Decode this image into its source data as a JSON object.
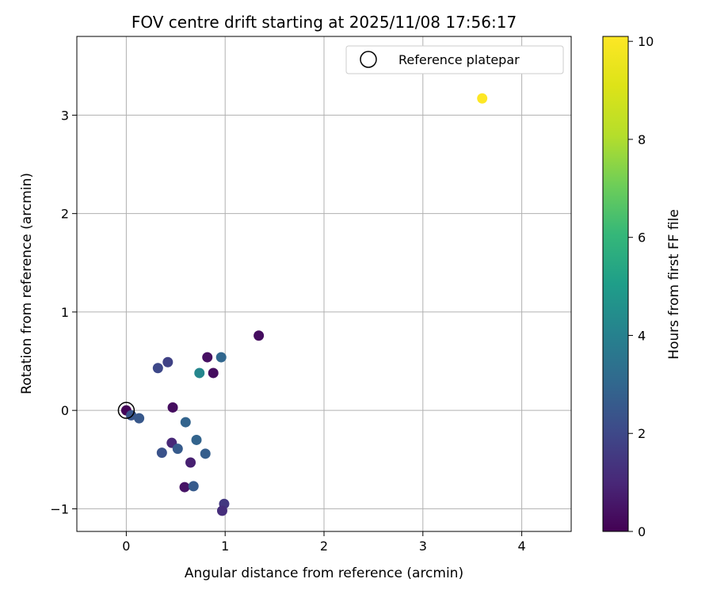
{
  "chart_data": {
    "type": "scatter",
    "title": "FOV centre drift starting at 2025/11/08 17:56:17",
    "xlabel": "Angular distance from reference (arcmin)",
    "ylabel": "Rotation from reference (arcmin)",
    "xlim": [
      -0.5,
      4.5
    ],
    "ylim": [
      -1.23,
      3.8
    ],
    "xticks": [
      0,
      1,
      2,
      3,
      4
    ],
    "yticks": [
      -1,
      0,
      1,
      2,
      3
    ],
    "grid": true,
    "legend": {
      "position": "top-right",
      "entries": [
        "Reference platepar"
      ]
    },
    "reference_point": {
      "x": 0,
      "y": 0
    },
    "colorbar": {
      "label": "Hours from first FF file",
      "min": 0,
      "max": 10.1,
      "ticks": [
        0,
        2,
        4,
        6,
        8,
        10
      ],
      "colormap": "viridis"
    },
    "points": [
      {
        "x": 0.0,
        "y": 0.0,
        "hours": 0.1
      },
      {
        "x": 0.05,
        "y": -0.05,
        "hours": 2.4
      },
      {
        "x": 0.13,
        "y": -0.08,
        "hours": 2.5
      },
      {
        "x": 0.32,
        "y": 0.43,
        "hours": 2.0
      },
      {
        "x": 0.42,
        "y": 0.49,
        "hours": 1.8
      },
      {
        "x": 0.47,
        "y": 0.03,
        "hours": 0.3
      },
      {
        "x": 0.46,
        "y": -0.33,
        "hours": 1.0
      },
      {
        "x": 0.36,
        "y": -0.43,
        "hours": 2.3
      },
      {
        "x": 0.52,
        "y": -0.39,
        "hours": 2.6
      },
      {
        "x": 0.6,
        "y": -0.12,
        "hours": 2.9
      },
      {
        "x": 0.65,
        "y": -0.53,
        "hours": 0.8
      },
      {
        "x": 0.59,
        "y": -0.78,
        "hours": 0.5
      },
      {
        "x": 0.68,
        "y": -0.77,
        "hours": 2.6
      },
      {
        "x": 0.71,
        "y": -0.3,
        "hours": 2.9
      },
      {
        "x": 0.74,
        "y": 0.38,
        "hours": 4.2
      },
      {
        "x": 0.82,
        "y": 0.54,
        "hours": 0.4
      },
      {
        "x": 0.88,
        "y": 0.38,
        "hours": 0.3
      },
      {
        "x": 0.8,
        "y": -0.44,
        "hours": 2.7
      },
      {
        "x": 0.96,
        "y": 0.54,
        "hours": 3.0
      },
      {
        "x": 0.99,
        "y": -0.95,
        "hours": 1.5
      },
      {
        "x": 0.97,
        "y": -1.02,
        "hours": 1.2
      },
      {
        "x": 1.34,
        "y": 0.76,
        "hours": 0.3
      },
      {
        "x": 3.6,
        "y": 3.17,
        "hours": 10.1
      }
    ]
  }
}
